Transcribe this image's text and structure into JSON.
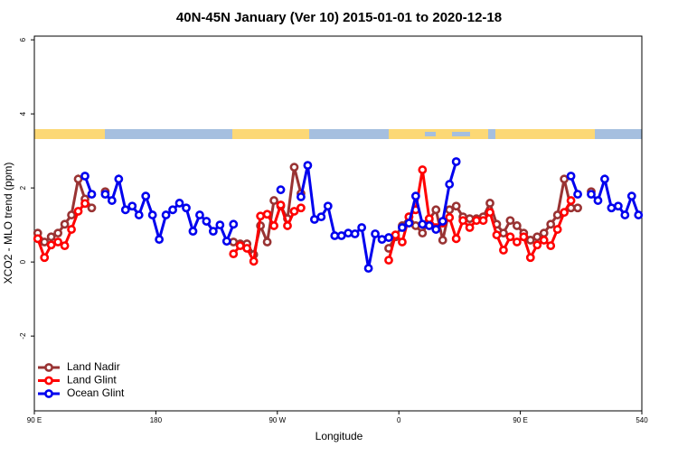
{
  "chart_data": {
    "type": "line",
    "title": "40N-45N January (Ver 10)   2015-01-01 to 2020-12-18",
    "x_label": "Longitude",
    "y_label": "XCO2 - MLO trend (ppm)",
    "xlim": [
      90,
      540
    ],
    "ylim": [
      -4.02,
      6.1
    ],
    "xticks": [
      {
        "value": 90,
        "label": "90 E"
      },
      180,
      {
        "value": 270,
        "label": "90 W"
      },
      {
        "value": 360,
        "label": "0"
      },
      {
        "value": 450,
        "label": "90 E"
      },
      540
    ],
    "yticks": [
      -2,
      0,
      2,
      4,
      6
    ],
    "legend": "bottom-left",
    "series": [
      {
        "name": "Land Nadir",
        "color": "#993333",
        "x": [
          92.5,
          97.5,
          102.5,
          107.5,
          112.5,
          117.5,
          122.5,
          127.5,
          132.5,
          137.5,
          142.5,
          147.5,
          237.5,
          242.5,
          247.5,
          252.5,
          257.5,
          262.5,
          267.5,
          272.5,
          277.5,
          282.5,
          287.5,
          292.5,
          352.5,
          357.5,
          362.5,
          367.5,
          372.5,
          377.5,
          382.5,
          387.5,
          392.5,
          397.5,
          402.5,
          407.5,
          412.5,
          417.5,
          422.5,
          427.5,
          432.5,
          437.5,
          442.5,
          447.5,
          452.5,
          457.5,
          462.5,
          467.5,
          472.5,
          477.5,
          482.5,
          487.5,
          492.5,
          497.5,
          502.5
        ],
        "values": [
          0.78,
          0.54,
          0.68,
          0.78,
          1.02,
          1.27,
          2.24,
          1.7,
          1.46,
          null,
          1.9,
          null,
          0.54,
          0.49,
          0.49,
          0.2,
          0.98,
          0.54,
          1.66,
          1.51,
          1.17,
          2.56,
          1.85,
          null,
          0.37,
          0.68,
          0.98,
          1.22,
          0.98,
          0.78,
          1.15,
          1.41,
          0.59,
          1.41,
          1.51,
          1.22,
          1.17,
          1.17,
          1.22,
          1.59,
          1.02,
          0.78,
          1.12,
          0.98,
          0.78,
          0.59,
          0.68,
          0.78,
          1.02,
          1.27,
          2.24,
          1.46,
          1.46,
          null,
          1.9
        ]
      },
      {
        "name": "Land Glint",
        "color": "#ff0000",
        "x": [
          92.5,
          97.5,
          102.5,
          107.5,
          112.5,
          117.5,
          122.5,
          127.5,
          132.5,
          237.5,
          242.5,
          247.5,
          252.5,
          257.5,
          262.5,
          267.5,
          272.5,
          277.5,
          282.5,
          287.5,
          292.5,
          352.5,
          357.5,
          362.5,
          367.5,
          372.5,
          377.5,
          382.5,
          387.5,
          392.5,
          397.5,
          402.5,
          407.5,
          412.5,
          417.5,
          422.5,
          427.5,
          432.5,
          437.5,
          442.5,
          447.5,
          452.5,
          457.5,
          462.5,
          467.5,
          472.5,
          477.5,
          482.5,
          487.5
        ],
        "values": [
          0.63,
          0.12,
          0.46,
          0.54,
          0.44,
          0.88,
          1.37,
          1.58,
          null,
          0.22,
          0.44,
          0.37,
          0.02,
          1.24,
          1.29,
          0.98,
          1.54,
          0.98,
          1.37,
          1.46,
          null,
          0.05,
          0.73,
          0.54,
          1.22,
          1.41,
          2.49,
          1.17,
          0.93,
          1.05,
          1.2,
          0.63,
          1.12,
          0.93,
          1.12,
          1.12,
          1.34,
          0.73,
          0.32,
          0.68,
          0.54,
          0.68,
          0.12,
          0.46,
          0.59,
          0.44,
          0.88,
          1.34,
          1.66
        ]
      },
      {
        "name": "Ocean Glint",
        "color": "#0000ee",
        "x": [
          127.5,
          132.5,
          137.5,
          142.5,
          147.5,
          152.5,
          157.5,
          162.5,
          167.5,
          172.5,
          177.5,
          182.5,
          187.5,
          192.5,
          197.5,
          202.5,
          207.5,
          212.5,
          217.5,
          222.5,
          227.5,
          232.5,
          237.5,
          242.5,
          272.5,
          282.5,
          287.5,
          292.5,
          297.5,
          302.5,
          307.5,
          312.5,
          317.5,
          322.5,
          327.5,
          332.5,
          337.5,
          342.5,
          347.5,
          352.5,
          357.5,
          362.5,
          367.5,
          372.5,
          377.5,
          382.5,
          387.5,
          392.5,
          397.5,
          402.5,
          482.5,
          487.5,
          492.5,
          497.5,
          502.5,
          507.5,
          512.5,
          517.5,
          522.5,
          527.5,
          532.5,
          537.5
        ],
        "values": [
          2.32,
          1.83,
          null,
          1.83,
          1.66,
          2.24,
          1.41,
          1.51,
          1.27,
          1.78,
          1.27,
          0.61,
          1.27,
          1.41,
          1.59,
          1.46,
          0.83,
          1.27,
          1.1,
          0.83,
          1.0,
          0.56,
          1.02,
          null,
          1.95,
          null,
          1.76,
          2.61,
          1.15,
          1.22,
          1.51,
          0.71,
          0.71,
          0.78,
          0.76,
          0.93,
          -0.17,
          0.76,
          0.61,
          0.66,
          null,
          0.93,
          1.05,
          1.78,
          1.02,
          0.98,
          0.88,
          1.1,
          2.1,
          2.71,
          null,
          2.32,
          1.83,
          null,
          1.83,
          1.66,
          2.24,
          1.46,
          1.51,
          1.27,
          1.78,
          1.27
        ]
      }
    ]
  }
}
